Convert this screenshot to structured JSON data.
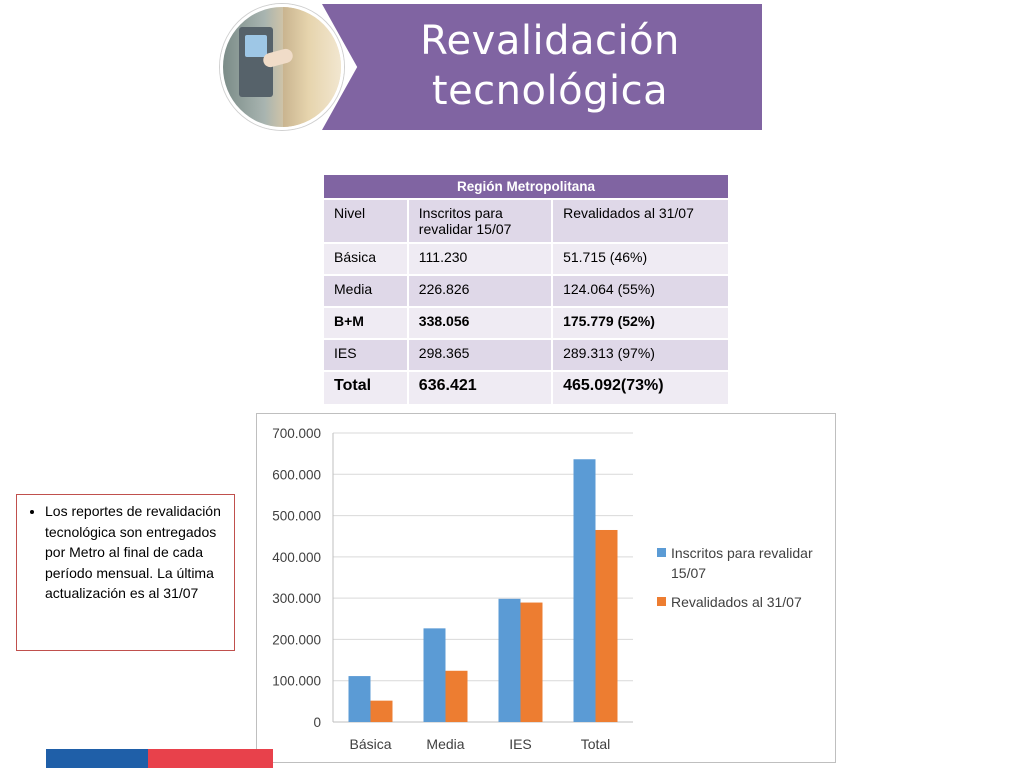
{
  "header": {
    "title_line1": "Revalidación",
    "title_line2": "tecnológica"
  },
  "table": {
    "caption": "Región Metropolitana",
    "columns": [
      "Nivel",
      "Inscritos para revalidar 15/07",
      "Revalidados al 31/07"
    ],
    "rows": [
      [
        "Básica",
        "111.230",
        "51.715 (46%)"
      ],
      [
        "Media",
        "226.826",
        "124.064 (55%)"
      ],
      [
        "B+M",
        "338.056",
        "175.779 (52%)"
      ],
      [
        "IES",
        "298.365",
        "289.313 (97%)"
      ],
      [
        "Total",
        "636.421",
        "465.092(73%)"
      ]
    ]
  },
  "note": {
    "text": "Los reportes de revalidación tecnológica son entregados por Metro al final de cada período mensual. La última actualización es al 31/07"
  },
  "colors": {
    "accent": "#8064a2",
    "series1": "#5b9bd5",
    "series2": "#ed7d31",
    "footer_blue": "#1f5fa8",
    "footer_red": "#e8414b"
  },
  "chart_data": {
    "type": "bar",
    "categories": [
      "Básica",
      "Media",
      "IES",
      "Total"
    ],
    "series": [
      {
        "name": "Inscritos para revalidar 15/07",
        "values": [
          111230,
          226826,
          298365,
          636421
        ]
      },
      {
        "name": "Revalidados al 31/07",
        "values": [
          51715,
          124064,
          289313,
          465092
        ]
      }
    ],
    "ylim": [
      0,
      700000
    ],
    "yticks": [
      "0",
      "100.000",
      "200.000",
      "300.000",
      "400.000",
      "500.000",
      "600.000",
      "700.000"
    ],
    "grid": true,
    "legend": "right"
  }
}
